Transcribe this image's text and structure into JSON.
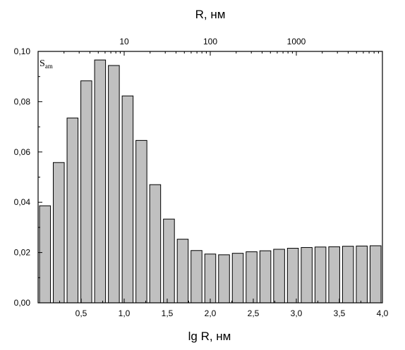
{
  "chart_data": {
    "type": "bar",
    "xlabel": "lg R, нм",
    "x2label": "R, нм",
    "ylabel": "S",
    "ylabel_subscript": "am",
    "xlim": [
      0.0,
      4.0
    ],
    "ylim": [
      0.0,
      0.1
    ],
    "grid": false,
    "bar_color": "#c0c0c0",
    "x_ticks": [
      {
        "value": 0.5,
        "label": "0,5"
      },
      {
        "value": 1.0,
        "label": "1,0"
      },
      {
        "value": 1.5,
        "label": "1,5"
      },
      {
        "value": 2.0,
        "label": "2,0"
      },
      {
        "value": 2.5,
        "label": "2,5"
      },
      {
        "value": 3.0,
        "label": "3,0"
      },
      {
        "value": 3.5,
        "label": "3,5"
      },
      {
        "value": 4.0,
        "label": "4,0"
      }
    ],
    "x2_ticks": [
      {
        "value": 1.0,
        "label": "10"
      },
      {
        "value": 2.0,
        "label": "100"
      },
      {
        "value": 3.0,
        "label": "1000"
      }
    ],
    "y_ticks": [
      {
        "value": 0.0,
        "label": "0,00"
      },
      {
        "value": 0.02,
        "label": "0,02"
      },
      {
        "value": 0.04,
        "label": "0,04"
      },
      {
        "value": 0.06,
        "label": "0,06"
      },
      {
        "value": 0.08,
        "label": "0,08"
      },
      {
        "value": 0.1,
        "label": "0,10"
      }
    ],
    "x": [
      0.08,
      0.24,
      0.4,
      0.56,
      0.72,
      0.88,
      1.04,
      1.2,
      1.36,
      1.52,
      1.68,
      1.84,
      2.0,
      2.16,
      2.32,
      2.48,
      2.64,
      2.8,
      2.96,
      3.12,
      3.28,
      3.44,
      3.6,
      3.76,
      3.92
    ],
    "values": [
      0.0386,
      0.0558,
      0.0735,
      0.0883,
      0.0966,
      0.0944,
      0.0823,
      0.0646,
      0.047,
      0.0333,
      0.0253,
      0.0208,
      0.0194,
      0.0191,
      0.0197,
      0.0203,
      0.0207,
      0.0213,
      0.0217,
      0.022,
      0.0222,
      0.0223,
      0.0225,
      0.0226,
      0.0227
    ]
  }
}
